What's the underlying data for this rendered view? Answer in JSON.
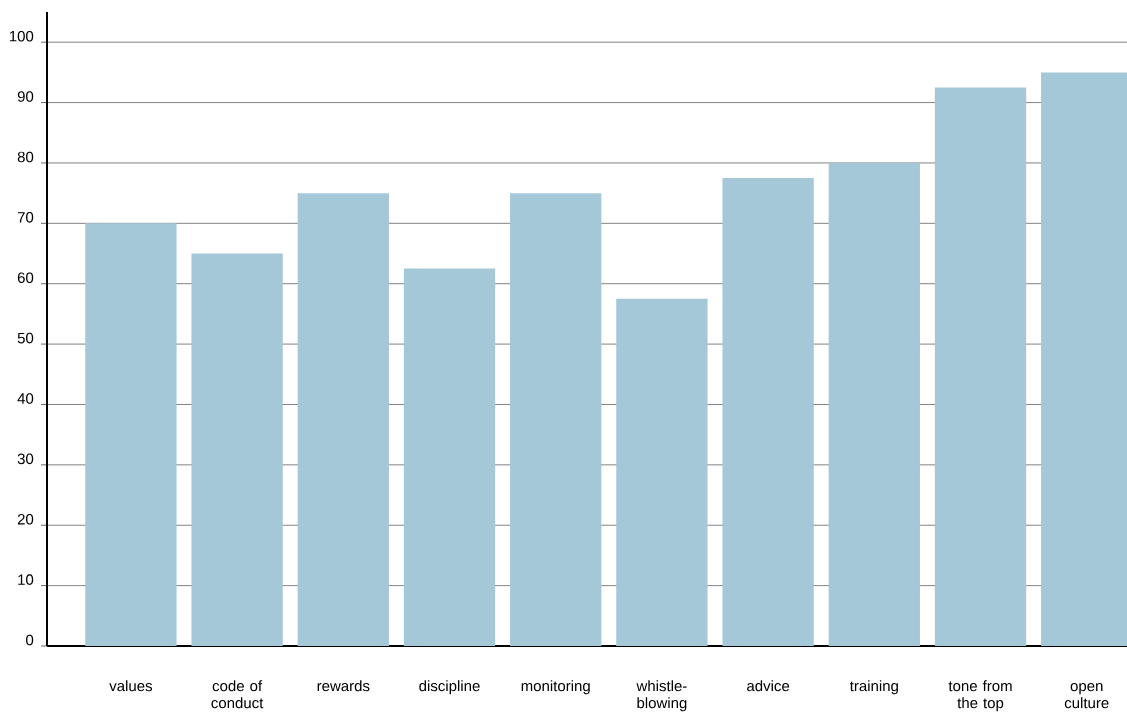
{
  "chart_data": {
    "type": "bar",
    "categories": [
      "values",
      "code of conduct",
      "rewards",
      "discipline",
      "monitoring",
      "whistle-blowing",
      "advice",
      "training",
      "tone from the top",
      "open culture"
    ],
    "values": [
      70,
      65,
      75,
      62.5,
      75,
      57.5,
      77.5,
      80,
      92.5,
      95
    ],
    "color": "#a5c8d8",
    "ylim": [
      0,
      105
    ],
    "yticks": [
      0,
      10,
      20,
      30,
      40,
      50,
      60,
      70,
      80,
      90,
      100
    ],
    "grid": "y"
  }
}
